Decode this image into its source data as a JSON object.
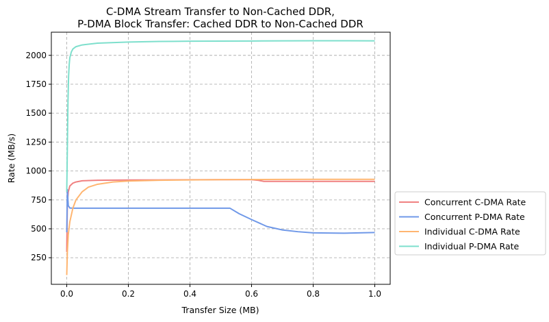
{
  "chart_data": {
    "type": "line",
    "title_lines": [
      "C-DMA Stream Transfer to Non-Cached DDR,",
      "P-DMA Block Transfer: Cached DDR to Non-Cached DDR"
    ],
    "xlabel": "Transfer Size (MB)",
    "ylabel": "Rate (MB/s)",
    "xlim": [
      -0.05,
      1.05
    ],
    "ylim": [
      20,
      2200
    ],
    "xticks": [
      0.0,
      0.2,
      0.4,
      0.6,
      0.8,
      1.0
    ],
    "xtick_labels": [
      "0.0",
      "0.2",
      "0.4",
      "0.6",
      "0.8",
      "1.0"
    ],
    "yticks": [
      250,
      500,
      750,
      1000,
      1250,
      1500,
      1750,
      2000
    ],
    "ytick_labels": [
      "250",
      "500",
      "750",
      "1000",
      "1250",
      "1500",
      "1750",
      "2000"
    ],
    "grid": true,
    "legend_position": "outside-right",
    "series": [
      {
        "name": "Concurrent C-DMA Rate",
        "color": "#f08080",
        "x": [
          0.0,
          0.002,
          0.005,
          0.01,
          0.02,
          0.03,
          0.05,
          0.1,
          0.2,
          0.3,
          0.4,
          0.5,
          0.6,
          0.62,
          0.64,
          0.66,
          0.7,
          0.8,
          0.9,
          1.0
        ],
        "y": [
          300,
          720,
          820,
          870,
          895,
          905,
          915,
          920,
          922,
          923,
          924,
          925,
          925,
          920,
          910,
          910,
          910,
          910,
          910,
          910
        ]
      },
      {
        "name": "Concurrent P-DMA Rate",
        "color": "#6f98e8",
        "x": [
          0.0,
          0.002,
          0.005,
          0.01,
          0.02,
          0.05,
          0.1,
          0.2,
          0.3,
          0.4,
          0.5,
          0.53,
          0.56,
          0.6,
          0.65,
          0.7,
          0.75,
          0.8,
          0.9,
          1.0
        ],
        "y": [
          470,
          840,
          700,
          680,
          678,
          678,
          678,
          678,
          678,
          678,
          678,
          678,
          630,
          580,
          520,
          490,
          475,
          465,
          462,
          468
        ]
      },
      {
        "name": "Individual C-DMA Rate",
        "color": "#ffb570",
        "x": [
          0.0,
          0.002,
          0.005,
          0.01,
          0.02,
          0.03,
          0.05,
          0.07,
          0.1,
          0.15,
          0.2,
          0.3,
          0.4,
          0.5,
          0.6,
          0.7,
          0.8,
          0.9,
          1.0
        ],
        "y": [
          100,
          300,
          450,
          560,
          680,
          750,
          820,
          860,
          885,
          905,
          913,
          920,
          923,
          925,
          926,
          927,
          928,
          928,
          928
        ]
      },
      {
        "name": "Individual P-DMA Rate",
        "color": "#7ddfcc",
        "x": [
          0.0,
          0.002,
          0.004,
          0.006,
          0.008,
          0.01,
          0.015,
          0.02,
          0.03,
          0.05,
          0.1,
          0.2,
          0.3,
          0.4,
          0.5,
          0.6,
          0.7,
          0.8,
          0.9,
          1.0
        ],
        "y": [
          820,
          1200,
          1600,
          1820,
          1920,
          1980,
          2030,
          2055,
          2075,
          2090,
          2105,
          2115,
          2120,
          2122,
          2123,
          2124,
          2125,
          2126,
          2126,
          2125
        ]
      }
    ]
  }
}
